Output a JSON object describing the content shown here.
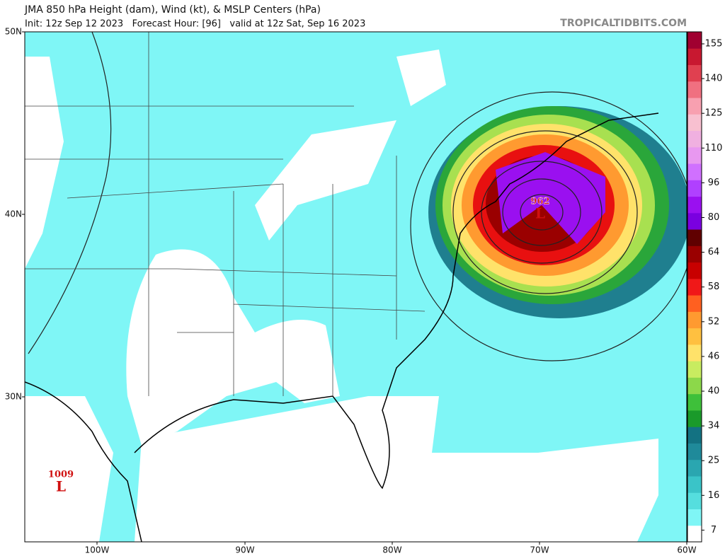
{
  "header": {
    "title": "JMA 850 hPa Height (dam), Wind (kt), & MSLP Centers (hPa)",
    "subtitle": "Init: 12z Sep 12 2023   Forecast Hour: [96]   valid at 12z Sat, Sep 16 2023",
    "site": "TROPICALTIDBITS.COM"
  },
  "map": {
    "lat_labels": [
      "50N",
      "40N",
      "30N"
    ],
    "lon_labels": [
      "100W",
      "90W",
      "80W",
      "70W",
      "60W"
    ],
    "pressure_centers": [
      {
        "value": 962,
        "symbol": "L"
      },
      {
        "value": 1009,
        "symbol": "L"
      }
    ]
  },
  "colorbar": {
    "labels": [
      155,
      140,
      125,
      110,
      96,
      80,
      64,
      58,
      52,
      46,
      40,
      34,
      25,
      16,
      7
    ]
  }
}
